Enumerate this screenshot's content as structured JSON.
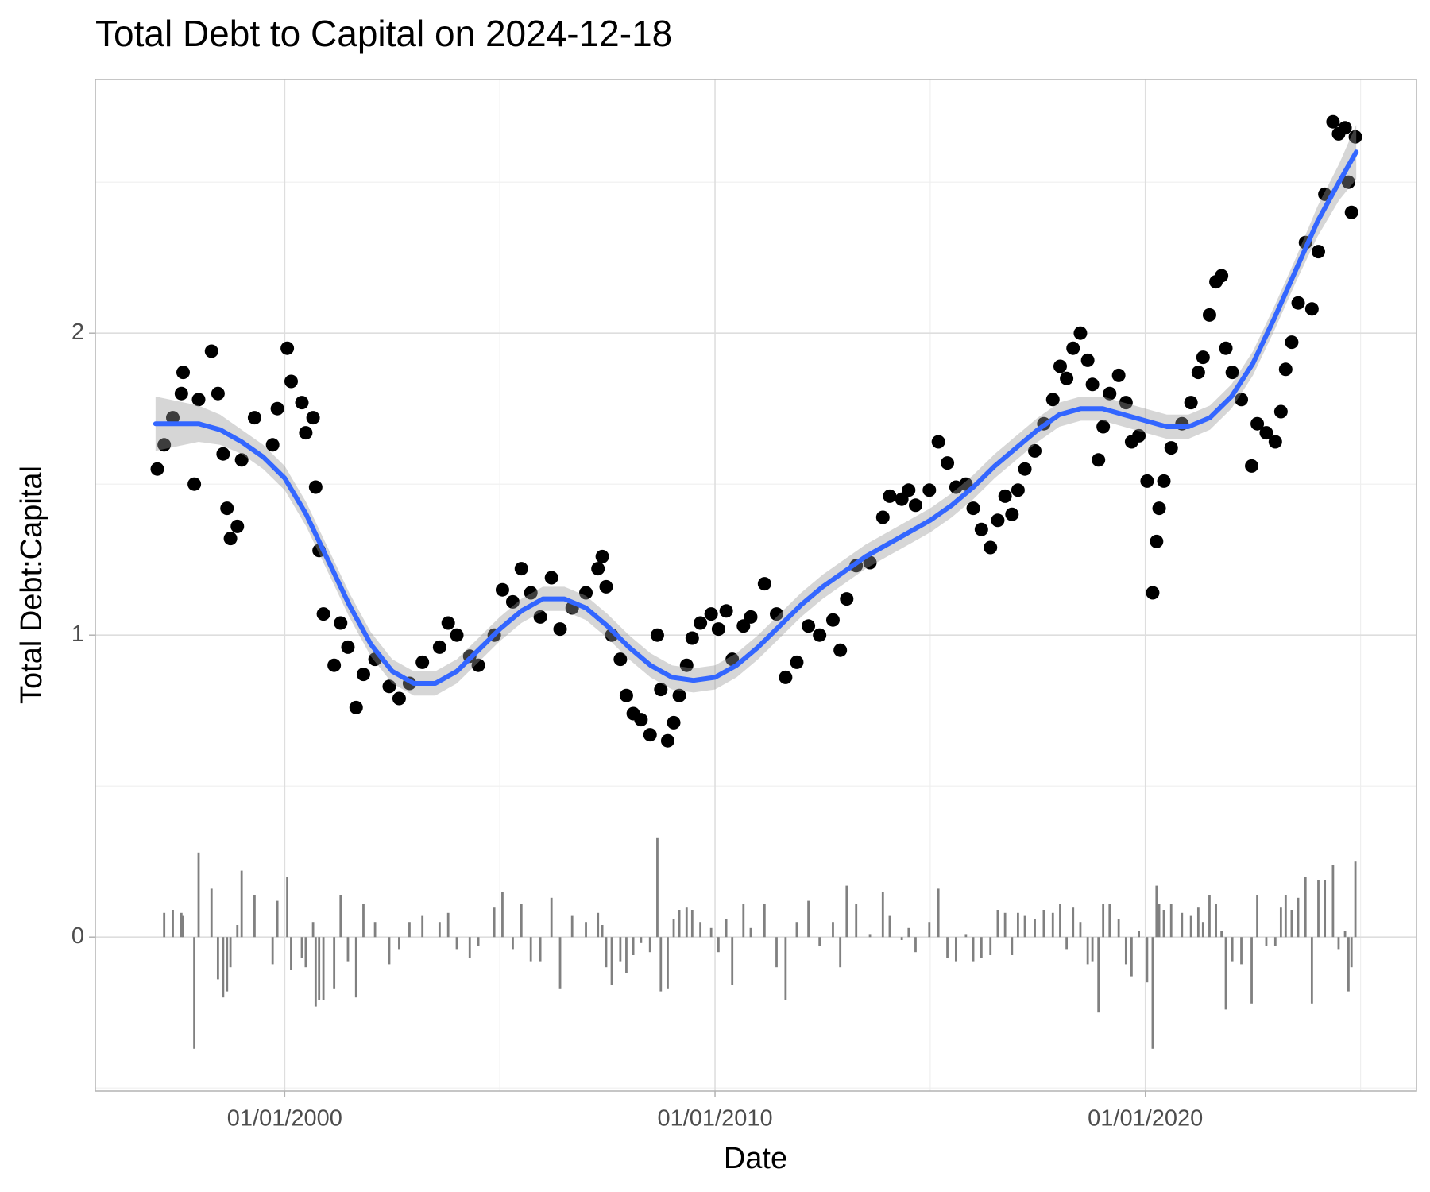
{
  "chart_data": {
    "type": "scatter",
    "title": "Total Debt to Capital on 2024-12-18",
    "x_label": "Date",
    "y_label": "Total Debt:Capital",
    "xlim": [
      1995.6,
      2026.3
    ],
    "ylim": [
      -0.51,
      2.84
    ],
    "xticks": [
      {
        "value": 2000,
        "label": "01/01/2000"
      },
      {
        "value": 2010,
        "label": "01/01/2010"
      },
      {
        "value": 2020,
        "label": "01/01/2020"
      }
    ],
    "yticks": [
      0,
      1,
      2
    ],
    "grid": true,
    "x": [
      1997.04,
      1997.2,
      1997.4,
      1997.6,
      1997.64,
      1997.9,
      1998,
      1998.3,
      1998.45,
      1998.57,
      1998.66,
      1998.74,
      1998.9,
      1999,
      1999.3,
      1999.72,
      1999.83,
      2000.06,
      2000.15,
      2000.4,
      2000.49,
      2000.66,
      2000.72,
      2000.8,
      2000.9,
      2001.15,
      2001.3,
      2001.47,
      2001.66,
      2001.83,
      2002.1,
      2002.43,
      2002.66,
      2002.9,
      2003.2,
      2003.6,
      2003.8,
      2004,
      2004.3,
      2004.5,
      2004.87,
      2005.06,
      2005.3,
      2005.5,
      2005.72,
      2005.94,
      2006.2,
      2006.4,
      2006.68,
      2007,
      2007.28,
      2007.38,
      2007.47,
      2007.6,
      2007.8,
      2007.94,
      2008.1,
      2008.28,
      2008.49,
      2008.66,
      2008.74,
      2008.9,
      2009.04,
      2009.17,
      2009.34,
      2009.47,
      2009.66,
      2009.91,
      2010.08,
      2010.26,
      2010.4,
      2010.66,
      2010.83,
      2011.15,
      2011.43,
      2011.64,
      2011.9,
      2012.17,
      2012.43,
      2012.74,
      2012.91,
      2013.06,
      2013.28,
      2013.6,
      2013.9,
      2014.06,
      2014.34,
      2014.5,
      2014.66,
      2014.98,
      2015.19,
      2015.4,
      2015.6,
      2015.83,
      2016,
      2016.19,
      2016.4,
      2016.57,
      2016.74,
      2016.9,
      2017.04,
      2017.2,
      2017.43,
      2017.64,
      2017.85,
      2018.02,
      2018.17,
      2018.32,
      2018.49,
      2018.66,
      2018.77,
      2018.91,
      2019.02,
      2019.17,
      2019.38,
      2019.55,
      2019.68,
      2019.85,
      2020.04,
      2020.17,
      2020.26,
      2020.32,
      2020.43,
      2020.6,
      2020.85,
      2021.06,
      2021.23,
      2021.34,
      2021.49,
      2021.64,
      2021.77,
      2021.87,
      2022.02,
      2022.23,
      2022.47,
      2022.6,
      2022.81,
      2023.02,
      2023.15,
      2023.26,
      2023.4,
      2023.55,
      2023.72,
      2023.87,
      2024.02,
      2024.17,
      2024.36,
      2024.49,
      2024.64,
      2024.72,
      2024.79,
      2024.88
    ],
    "values": [
      1.55,
      1.63,
      1.72,
      1.8,
      1.87,
      1.5,
      1.78,
      1.94,
      1.8,
      1.6,
      1.42,
      1.32,
      1.36,
      1.58,
      1.72,
      1.63,
      1.75,
      1.95,
      1.84,
      1.77,
      1.67,
      1.72,
      1.49,
      1.28,
      1.07,
      0.9,
      1.04,
      0.96,
      0.76,
      0.87,
      0.92,
      0.83,
      0.79,
      0.84,
      0.91,
      0.96,
      1.04,
      1.0,
      0.93,
      0.9,
      1.0,
      1.15,
      1.11,
      1.22,
      1.14,
      1.06,
      1.19,
      1.02,
      1.09,
      1.14,
      1.22,
      1.26,
      1.16,
      1.0,
      0.92,
      0.8,
      0.74,
      0.72,
      0.67,
      1.0,
      0.82,
      0.65,
      0.71,
      0.8,
      0.9,
      0.99,
      1.04,
      1.07,
      1.02,
      1.08,
      0.92,
      1.03,
      1.06,
      1.17,
      1.07,
      0.86,
      0.91,
      1.03,
      1.0,
      1.05,
      0.95,
      1.12,
      1.23,
      1.24,
      1.39,
      1.46,
      1.45,
      1.48,
      1.43,
      1.48,
      1.64,
      1.57,
      1.49,
      1.5,
      1.42,
      1.35,
      1.29,
      1.38,
      1.46,
      1.4,
      1.48,
      1.55,
      1.61,
      1.7,
      1.78,
      1.89,
      1.85,
      1.95,
      2.0,
      1.91,
      1.83,
      1.58,
      1.69,
      1.8,
      1.86,
      1.77,
      1.64,
      1.66,
      1.51,
      1.14,
      1.31,
      1.42,
      1.51,
      1.62,
      1.7,
      1.77,
      1.87,
      1.92,
      2.06,
      2.17,
      2.19,
      1.95,
      1.87,
      1.78,
      1.56,
      1.7,
      1.67,
      1.64,
      1.74,
      1.88,
      1.97,
      2.1,
      2.3,
      2.08,
      2.27,
      2.46,
      2.7,
      2.66,
      2.68,
      2.5,
      2.4,
      2.65
    ],
    "color": "#000000",
    "changes": {
      "color": "#808080",
      "values": [
        null,
        0.08,
        0.09,
        0.08,
        0.07,
        -0.37,
        0.28,
        0.16,
        -0.14,
        -0.2,
        -0.18,
        -0.1,
        0.04,
        0.22,
        0.14,
        -0.09,
        0.12,
        0.2,
        -0.11,
        -0.07,
        -0.1,
        0.05,
        -0.23,
        -0.21,
        -0.21,
        -0.17,
        0.14,
        -0.08,
        -0.2,
        0.11,
        0.05,
        -0.09,
        -0.04,
        0.05,
        0.07,
        0.05,
        0.08,
        -0.04,
        -0.07,
        -0.03,
        0.1,
        0.15,
        -0.04,
        0.11,
        -0.08,
        -0.08,
        0.13,
        -0.17,
        0.07,
        0.05,
        0.08,
        0.04,
        -0.1,
        -0.16,
        -0.08,
        -0.12,
        -0.06,
        -0.02,
        -0.05,
        0.33,
        -0.18,
        -0.17,
        0.06,
        0.09,
        0.1,
        0.09,
        0.05,
        0.03,
        -0.05,
        0.06,
        -0.16,
        0.11,
        0.03,
        0.11,
        -0.1,
        -0.21,
        0.05,
        0.12,
        -0.03,
        0.05,
        -0.1,
        0.17,
        0.11,
        0.01,
        0.15,
        0.07,
        -0.01,
        0.03,
        -0.05,
        0.05,
        0.16,
        -0.07,
        -0.08,
        0.01,
        -0.08,
        -0.07,
        -0.06,
        0.09,
        0.08,
        -0.06,
        0.08,
        0.07,
        0.06,
        0.09,
        0.08,
        0.11,
        -0.04,
        0.1,
        0.05,
        -0.09,
        -0.08,
        -0.25,
        0.11,
        0.11,
        0.06,
        -0.09,
        -0.13,
        0.02,
        -0.15,
        -0.37,
        0.17,
        0.11,
        0.09,
        0.11,
        0.08,
        0.07,
        0.1,
        0.05,
        0.14,
        0.11,
        0.02,
        -0.24,
        -0.08,
        -0.09,
        -0.22,
        0.14,
        -0.03,
        -0.03,
        0.1,
        0.14,
        0.09,
        0.13,
        0.2,
        -0.22,
        0.19,
        0.19,
        0.24,
        -0.04,
        0.02,
        -0.18,
        -0.1,
        0.25
      ]
    },
    "smooth": {
      "color": "#3366ff",
      "band_color": "#999999",
      "x": [
        1997,
        1998,
        1998.5,
        1999,
        1999.5,
        2000,
        2000.5,
        2001,
        2001.5,
        2002,
        2002.5,
        2003,
        2003.5,
        2004,
        2004.5,
        2005,
        2005.5,
        2006,
        2006.5,
        2007,
        2007.5,
        2008,
        2008.5,
        2009,
        2009.5,
        2010,
        2010.5,
        2011,
        2011.5,
        2012,
        2012.5,
        2013,
        2013.5,
        2014,
        2014.5,
        2015,
        2015.5,
        2016,
        2016.5,
        2017,
        2017.5,
        2018,
        2018.5,
        2019,
        2019.5,
        2020,
        2020.5,
        2021,
        2021.5,
        2022,
        2022.5,
        2023,
        2023.5,
        2024,
        2024.5,
        2024.9
      ],
      "values": [
        1.7,
        1.7,
        1.68,
        1.64,
        1.59,
        1.52,
        1.4,
        1.25,
        1.1,
        0.97,
        0.88,
        0.84,
        0.84,
        0.88,
        0.95,
        1.02,
        1.08,
        1.12,
        1.12,
        1.09,
        1.03,
        0.96,
        0.9,
        0.86,
        0.85,
        0.86,
        0.9,
        0.96,
        1.03,
        1.1,
        1.16,
        1.21,
        1.26,
        1.3,
        1.34,
        1.38,
        1.43,
        1.49,
        1.56,
        1.62,
        1.68,
        1.73,
        1.75,
        1.75,
        1.73,
        1.71,
        1.69,
        1.69,
        1.72,
        1.79,
        1.9,
        2.05,
        2.21,
        2.37,
        2.5,
        2.6
      ],
      "upper": [
        1.79,
        1.76,
        1.73,
        1.68,
        1.63,
        1.56,
        1.44,
        1.29,
        1.14,
        1.01,
        0.92,
        0.88,
        0.88,
        0.92,
        0.99,
        1.06,
        1.12,
        1.16,
        1.16,
        1.13,
        1.07,
        1.0,
        0.94,
        0.9,
        0.89,
        0.9,
        0.94,
        1.0,
        1.07,
        1.14,
        1.2,
        1.25,
        1.3,
        1.34,
        1.38,
        1.42,
        1.47,
        1.53,
        1.6,
        1.66,
        1.72,
        1.77,
        1.79,
        1.79,
        1.77,
        1.75,
        1.73,
        1.73,
        1.76,
        1.83,
        1.94,
        2.09,
        2.25,
        2.42,
        2.56,
        2.69
      ],
      "lower": [
        1.61,
        1.64,
        1.63,
        1.6,
        1.55,
        1.48,
        1.36,
        1.21,
        1.06,
        0.93,
        0.84,
        0.8,
        0.8,
        0.84,
        0.91,
        0.98,
        1.04,
        1.08,
        1.08,
        1.05,
        0.99,
        0.92,
        0.86,
        0.82,
        0.81,
        0.82,
        0.86,
        0.92,
        0.99,
        1.06,
        1.12,
        1.17,
        1.22,
        1.26,
        1.3,
        1.34,
        1.39,
        1.45,
        1.52,
        1.58,
        1.64,
        1.69,
        1.71,
        1.71,
        1.69,
        1.67,
        1.65,
        1.65,
        1.68,
        1.75,
        1.86,
        2.01,
        2.17,
        2.32,
        2.44,
        2.51
      ]
    }
  }
}
